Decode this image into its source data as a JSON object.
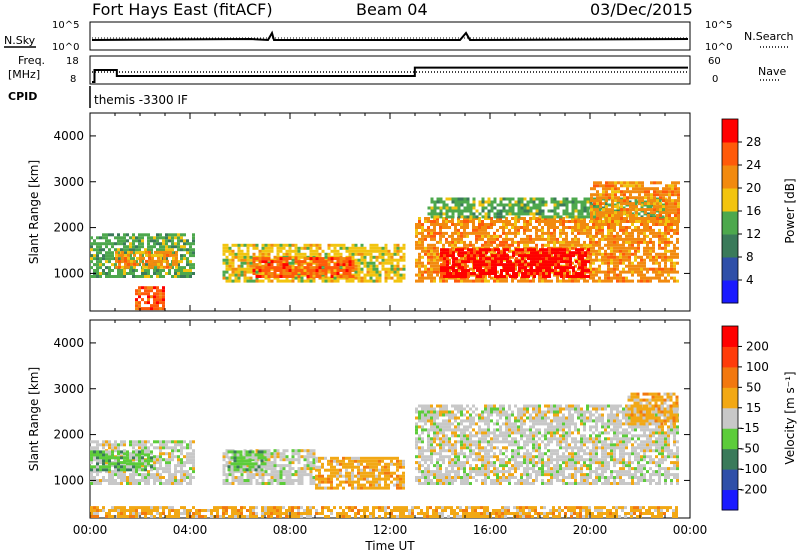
{
  "header": {
    "station": "Fort Hays East (fitACF)",
    "beam": "Beam 04",
    "date": "03/Dec/2015"
  },
  "top_panel": {
    "left_label": "N.Sky",
    "left_ticks": [
      "10^5",
      "10^0"
    ],
    "right_label": "N.Search",
    "right_ticks": [
      "10^5",
      "10^0"
    ]
  },
  "freq_panel": {
    "left_label_1": "Freq.",
    "left_label_2": "[MHz]",
    "left_ticks": [
      "18",
      "8"
    ],
    "right_label": "Nave",
    "right_ticks": [
      "60",
      "0"
    ],
    "freq_steps": [
      {
        "t0": 0.0,
        "t1": 0.1,
        "v": 8
      },
      {
        "t0": 0.1,
        "t1": 1.0,
        "v": 13
      },
      {
        "t0": 1.0,
        "t1": 13.0,
        "v": 10.5
      },
      {
        "t0": 13.0,
        "t1": 24.0,
        "v": 14
      }
    ]
  },
  "cpid": {
    "label": "CPID",
    "value": "themis -3300 IF"
  },
  "colors": {
    "power": [
      "#1a1aff",
      "#2f4fa8",
      "#3a7a5a",
      "#4da84d",
      "#f2c40f",
      "#f28a0f",
      "#ff5a0a",
      "#ff0000"
    ],
    "velocity": [
      "#1a1aff",
      "#2f4fa8",
      "#3a7a5a",
      "#5ccc3a",
      "#c8c8c8",
      "#f2a814",
      "#f2780f",
      "#ff3c0a",
      "#ff0000"
    ]
  },
  "chart_data": [
    {
      "type": "heatmap",
      "name_key": "power",
      "xlabel": "",
      "ylabel": "Slant Range [km]",
      "xlim": [
        0,
        24
      ],
      "ylim": [
        180,
        4500
      ],
      "y_ticks": [
        "1000",
        "2000",
        "3000",
        "4000"
      ],
      "colorbar_label": "Power [dB]",
      "colorbar_ticks": [
        "4",
        "8",
        "12",
        "16",
        "20",
        "24",
        "28"
      ],
      "regions": [
        {
          "t0": 0.0,
          "t1": 4.2,
          "r0": 900,
          "r1": 1850,
          "level": 3
        },
        {
          "t0": 1.0,
          "t1": 3.5,
          "r0": 1100,
          "r1": 1450,
          "level": 5
        },
        {
          "t0": 1.8,
          "t1": 3.0,
          "r0": 200,
          "r1": 700,
          "level": 6
        },
        {
          "t0": 5.3,
          "t1": 12.5,
          "r0": 800,
          "r1": 1600,
          "level": 4
        },
        {
          "t0": 6.5,
          "t1": 10.5,
          "r0": 900,
          "r1": 1300,
          "level": 6
        },
        {
          "t0": 13.0,
          "t1": 23.5,
          "r0": 800,
          "r1": 2200,
          "level": 5
        },
        {
          "t0": 14.0,
          "t1": 20.0,
          "r0": 900,
          "r1": 1500,
          "level": 7
        },
        {
          "t0": 13.5,
          "t1": 23.0,
          "r0": 2200,
          "r1": 2600,
          "level": 3
        },
        {
          "t0": 20.0,
          "t1": 23.5,
          "r0": 2100,
          "r1": 3000,
          "level": 5
        }
      ]
    },
    {
      "type": "heatmap",
      "name_key": "velocity",
      "xlabel": "Time UT",
      "ylabel": "Slant Range [km]",
      "xlim": [
        0,
        24
      ],
      "ylim": [
        180,
        4500
      ],
      "x_ticks": [
        "00:00",
        "04:00",
        "08:00",
        "12:00",
        "16:00",
        "20:00",
        "00:00"
      ],
      "y_ticks": [
        "1000",
        "2000",
        "3000",
        "4000"
      ],
      "colorbar_label": "Velocity [m s⁻¹]",
      "colorbar_ticks": [
        "200",
        "100",
        "50",
        "15",
        "-15",
        "-50",
        "-100",
        "-200"
      ],
      "regions": [
        {
          "t0": 0.0,
          "t1": 4.2,
          "r0": 900,
          "r1": 1850,
          "level": 4
        },
        {
          "t0": 0.0,
          "t1": 2.5,
          "r0": 1200,
          "r1": 1650,
          "level": 3
        },
        {
          "t0": 5.3,
          "t1": 9.0,
          "r0": 900,
          "r1": 1650,
          "level": 4
        },
        {
          "t0": 5.5,
          "t1": 7.0,
          "r0": 1200,
          "r1": 1600,
          "level": 3
        },
        {
          "t0": 9.0,
          "t1": 12.5,
          "r0": 800,
          "r1": 1500,
          "level": 5
        },
        {
          "t0": 13.0,
          "t1": 23.5,
          "r0": 900,
          "r1": 2600,
          "level": 4
        },
        {
          "t0": 21.5,
          "t1": 23.5,
          "r0": 2200,
          "r1": 2900,
          "level": 5
        },
        {
          "t0": 0.0,
          "t1": 23.5,
          "r0": 180,
          "r1": 420,
          "level": 5
        }
      ]
    }
  ]
}
